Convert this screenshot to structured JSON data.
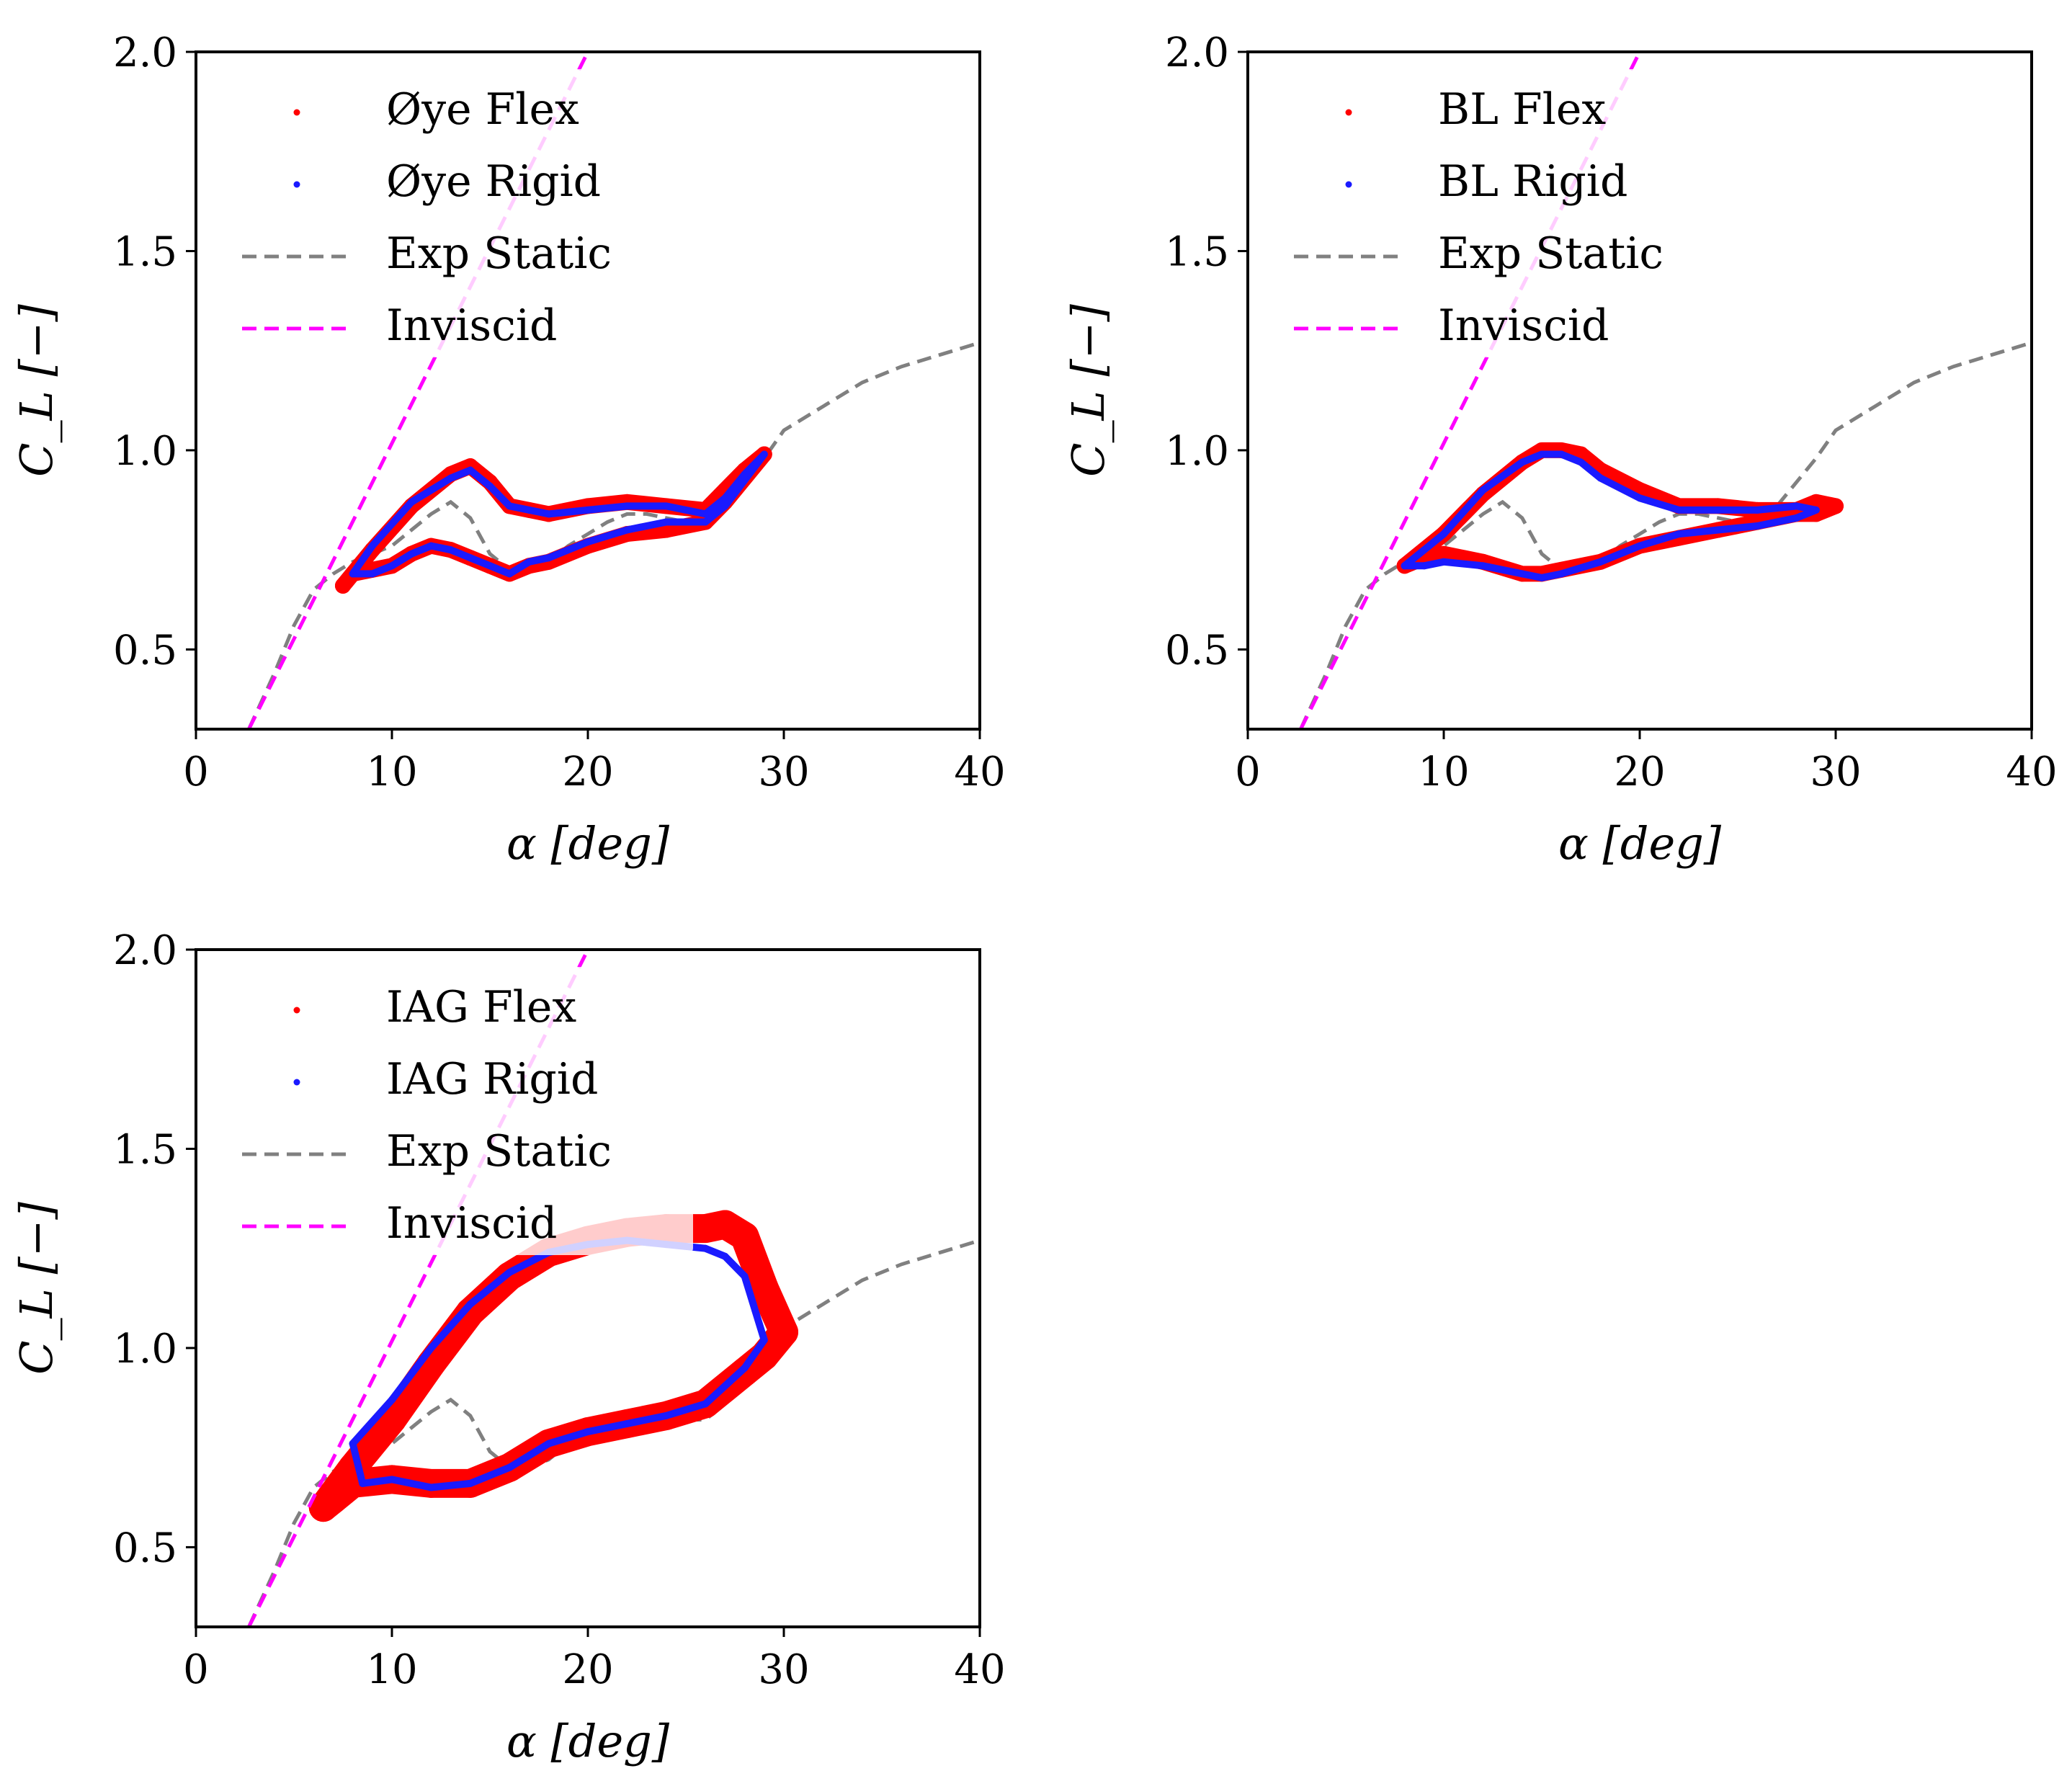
{
  "colors": {
    "flex": "#ff0000",
    "rigid": "#1a1aff",
    "exp_static": "#808080",
    "inviscid": "#ff00ff",
    "axes": "#000000"
  },
  "chart_data": [
    {
      "type": "scatter",
      "panel": "top-left",
      "xlabel": "α [deg]",
      "ylabel": "C_L [−]",
      "xlim": [
        0,
        40
      ],
      "ylim": [
        0.3,
        2.0
      ],
      "xticks": [
        "0",
        "10",
        "20",
        "30",
        "40"
      ],
      "yticks": [
        "0.5",
        "1.0",
        "1.5",
        "2.0"
      ],
      "legend_position": "top-left",
      "legend": [
        "Øye Flex",
        "Øye Rigid",
        "Exp Static",
        "Inviscid"
      ],
      "series": [
        {
          "name": "Øye Flex",
          "style": "scatter",
          "color_key": "flex",
          "thickness": 22,
          "x": [
            7.5,
            9,
            11,
            13,
            14,
            15,
            16,
            17,
            18,
            20,
            22,
            24,
            26,
            27,
            28,
            29,
            27,
            26,
            24,
            22,
            20,
            18,
            17,
            16,
            15,
            14,
            13,
            12,
            11,
            10,
            9,
            8,
            7.5
          ],
          "y": [
            0.66,
            0.75,
            0.86,
            0.94,
            0.96,
            0.92,
            0.86,
            0.85,
            0.84,
            0.86,
            0.87,
            0.86,
            0.85,
            0.9,
            0.95,
            0.99,
            0.87,
            0.82,
            0.8,
            0.79,
            0.76,
            0.72,
            0.71,
            0.69,
            0.71,
            0.73,
            0.75,
            0.76,
            0.74,
            0.71,
            0.7,
            0.69,
            0.66
          ]
        },
        {
          "name": "Øye Rigid",
          "style": "scatter",
          "color_key": "rigid",
          "thickness": 10,
          "x": [
            8,
            9,
            11,
            13,
            14,
            15,
            16,
            17,
            18,
            20,
            22,
            24,
            26,
            27,
            28,
            29,
            27,
            26,
            24,
            22,
            20,
            18,
            17,
            16,
            15,
            14,
            13,
            12,
            11,
            10,
            9,
            8
          ],
          "y": [
            0.69,
            0.76,
            0.87,
            0.93,
            0.95,
            0.91,
            0.86,
            0.85,
            0.84,
            0.85,
            0.86,
            0.86,
            0.84,
            0.88,
            0.94,
            0.99,
            0.86,
            0.82,
            0.82,
            0.8,
            0.77,
            0.73,
            0.72,
            0.69,
            0.71,
            0.73,
            0.75,
            0.76,
            0.74,
            0.71,
            0.69,
            0.69
          ]
        },
        {
          "name": "Exp Static",
          "style": "dashed",
          "color_key": "exp_static",
          "x": [
            2.7,
            4,
            5,
            6,
            7,
            8,
            9,
            10,
            11,
            12,
            13,
            14,
            15,
            16,
            17,
            18,
            19,
            20,
            21,
            22,
            23,
            24,
            25,
            26,
            27,
            28,
            29,
            30,
            32,
            34,
            36,
            38,
            40
          ],
          "y": [
            0.3,
            0.44,
            0.56,
            0.65,
            0.69,
            0.72,
            0.74,
            0.76,
            0.8,
            0.84,
            0.87,
            0.83,
            0.74,
            0.7,
            0.7,
            0.72,
            0.76,
            0.79,
            0.82,
            0.84,
            0.84,
            0.83,
            0.82,
            0.82,
            0.86,
            0.92,
            0.98,
            1.05,
            1.11,
            1.17,
            1.21,
            1.24,
            1.27
          ]
        },
        {
          "name": "Inviscid",
          "style": "dashed",
          "color_key": "inviscid",
          "x": [
            2.7,
            20
          ],
          "y": [
            0.3,
            2.0
          ]
        }
      ]
    },
    {
      "type": "scatter",
      "panel": "top-right",
      "xlabel": "α [deg]",
      "ylabel": "C_L [−]",
      "xlim": [
        0,
        40
      ],
      "ylim": [
        0.3,
        2.0
      ],
      "xticks": [
        "0",
        "10",
        "20",
        "30",
        "40"
      ],
      "yticks": [
        "0.5",
        "1.0",
        "1.5",
        "2.0"
      ],
      "legend_position": "top-left",
      "legend": [
        "BL Flex",
        "BL Rigid",
        "Exp Static",
        "Inviscid"
      ],
      "series": [
        {
          "name": "BL Flex",
          "style": "scatter",
          "color_key": "flex",
          "thickness": 22,
          "x": [
            8,
            10,
            12,
            14,
            15,
            16,
            17,
            18,
            20,
            22,
            24,
            26,
            28,
            29,
            30,
            29,
            28,
            26,
            24,
            22,
            20,
            18,
            16,
            15,
            14,
            12,
            10,
            9,
            8
          ],
          "y": [
            0.71,
            0.79,
            0.89,
            0.97,
            1.0,
            1.0,
            0.99,
            0.95,
            0.9,
            0.86,
            0.86,
            0.85,
            0.85,
            0.87,
            0.86,
            0.84,
            0.84,
            0.82,
            0.8,
            0.78,
            0.76,
            0.72,
            0.7,
            0.69,
            0.69,
            0.72,
            0.74,
            0.73,
            0.71
          ]
        },
        {
          "name": "BL Rigid",
          "style": "scatter",
          "color_key": "rigid",
          "thickness": 10,
          "x": [
            8,
            10,
            12,
            14,
            15,
            16,
            17,
            18,
            20,
            22,
            24,
            26,
            28,
            29,
            28,
            26,
            24,
            22,
            20,
            18,
            16,
            15,
            14,
            12,
            10,
            9,
            8
          ],
          "y": [
            0.71,
            0.79,
            0.9,
            0.97,
            0.99,
            0.99,
            0.97,
            0.93,
            0.88,
            0.85,
            0.85,
            0.85,
            0.86,
            0.85,
            0.83,
            0.81,
            0.8,
            0.79,
            0.76,
            0.72,
            0.69,
            0.68,
            0.69,
            0.71,
            0.72,
            0.71,
            0.71
          ]
        },
        {
          "name": "Exp Static",
          "style": "dashed",
          "color_key": "exp_static",
          "x": [
            2.7,
            4,
            5,
            6,
            7,
            8,
            9,
            10,
            11,
            12,
            13,
            14,
            15,
            16,
            17,
            18,
            19,
            20,
            21,
            22,
            23,
            24,
            25,
            26,
            27,
            28,
            29,
            30,
            32,
            34,
            36,
            38,
            40
          ],
          "y": [
            0.3,
            0.44,
            0.56,
            0.65,
            0.69,
            0.72,
            0.74,
            0.76,
            0.8,
            0.84,
            0.87,
            0.83,
            0.74,
            0.7,
            0.7,
            0.72,
            0.76,
            0.79,
            0.82,
            0.84,
            0.84,
            0.83,
            0.82,
            0.82,
            0.86,
            0.92,
            0.98,
            1.05,
            1.11,
            1.17,
            1.21,
            1.24,
            1.27
          ]
        },
        {
          "name": "Inviscid",
          "style": "dashed",
          "color_key": "inviscid",
          "x": [
            2.7,
            20
          ],
          "y": [
            0.3,
            2.0
          ]
        }
      ]
    },
    {
      "type": "scatter",
      "panel": "bottom-left",
      "xlabel": "α [deg]",
      "ylabel": "C_L [−]",
      "xlim": [
        0,
        40
      ],
      "ylim": [
        0.3,
        2.0
      ],
      "xticks": [
        "0",
        "10",
        "20",
        "30",
        "40"
      ],
      "yticks": [
        "0.5",
        "1.0",
        "1.5",
        "2.0"
      ],
      "legend_position": "top-left",
      "legend": [
        "IAG Flex",
        "IAG Rigid",
        "Exp Static",
        "Inviscid"
      ],
      "series": [
        {
          "name": "IAG Flex",
          "style": "scatter",
          "color_key": "flex",
          "thickness": 40,
          "x": [
            6.5,
            8,
            10,
            12,
            14,
            16,
            18,
            20,
            22,
            24,
            26,
            27,
            28,
            29,
            30,
            29,
            28,
            26,
            24,
            22,
            20,
            18,
            16,
            14,
            12,
            10,
            8,
            7,
            6.5
          ],
          "y": [
            0.6,
            0.7,
            0.82,
            0.96,
            1.09,
            1.18,
            1.24,
            1.27,
            1.29,
            1.3,
            1.3,
            1.31,
            1.28,
            1.15,
            1.04,
            0.98,
            0.94,
            0.86,
            0.83,
            0.81,
            0.79,
            0.76,
            0.7,
            0.66,
            0.66,
            0.67,
            0.66,
            0.62,
            0.6
          ]
        },
        {
          "name": "IAG Rigid",
          "style": "scatter",
          "color_key": "rigid",
          "thickness": 10,
          "x": [
            8,
            10,
            12,
            14,
            16,
            18,
            20,
            22,
            24,
            26,
            27,
            28,
            29,
            28,
            26,
            24,
            22,
            20,
            18,
            16,
            14,
            12,
            10,
            8.5,
            8
          ],
          "y": [
            0.76,
            0.87,
            1.0,
            1.11,
            1.19,
            1.24,
            1.26,
            1.27,
            1.26,
            1.25,
            1.23,
            1.18,
            1.02,
            0.95,
            0.86,
            0.83,
            0.81,
            0.79,
            0.76,
            0.7,
            0.66,
            0.65,
            0.67,
            0.66,
            0.76
          ]
        },
        {
          "name": "Exp Static",
          "style": "dashed",
          "color_key": "exp_static",
          "x": [
            2.7,
            4,
            5,
            6,
            7,
            8,
            9,
            10,
            11,
            12,
            13,
            14,
            15,
            16,
            17,
            18,
            19,
            20,
            21,
            22,
            23,
            24,
            25,
            26,
            27,
            28,
            29,
            30,
            32,
            34,
            36,
            38,
            40
          ],
          "y": [
            0.3,
            0.44,
            0.56,
            0.65,
            0.69,
            0.72,
            0.74,
            0.76,
            0.8,
            0.84,
            0.87,
            0.83,
            0.74,
            0.7,
            0.7,
            0.72,
            0.76,
            0.79,
            0.82,
            0.84,
            0.84,
            0.83,
            0.82,
            0.82,
            0.86,
            0.92,
            0.98,
            1.05,
            1.11,
            1.17,
            1.21,
            1.24,
            1.27
          ]
        },
        {
          "name": "Inviscid",
          "style": "dashed",
          "color_key": "inviscid",
          "x": [
            2.7,
            20
          ],
          "y": [
            0.3,
            2.0
          ]
        }
      ]
    }
  ]
}
